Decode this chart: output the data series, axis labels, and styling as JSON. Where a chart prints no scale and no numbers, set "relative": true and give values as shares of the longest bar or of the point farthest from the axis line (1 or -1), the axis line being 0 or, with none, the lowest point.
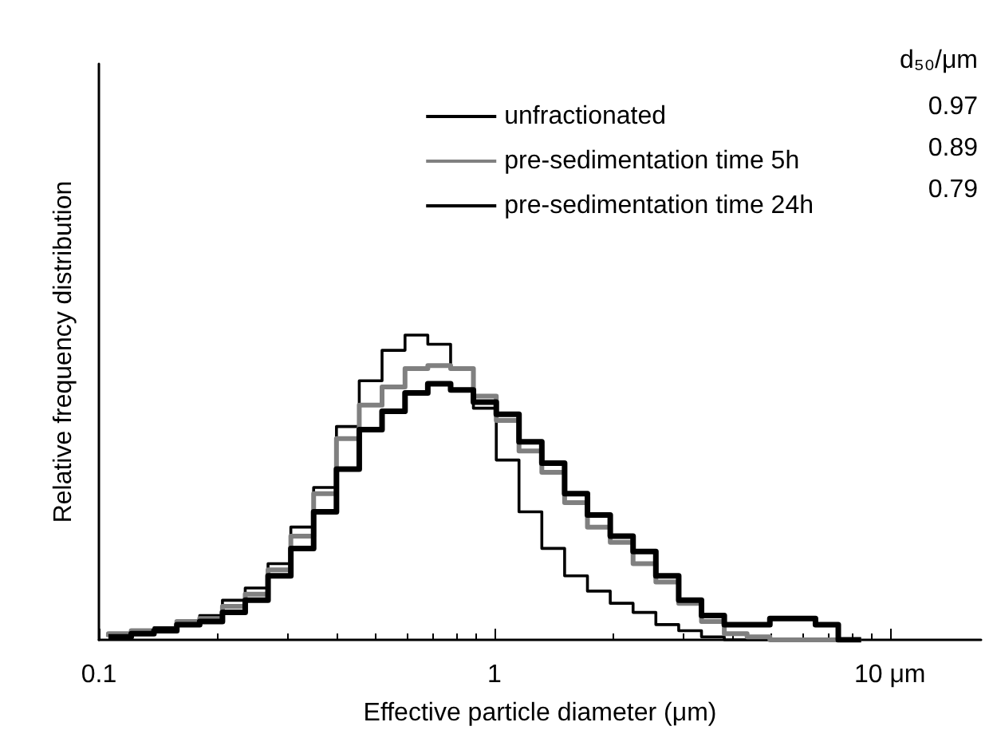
{
  "chart_data": {
    "type": "step",
    "relative": true,
    "log": "x",
    "xlabel": "Effective particle diameter (μm)",
    "ylabel": "Relative frequency distribution",
    "xlim": [
      0.1,
      17
    ],
    "xticks": [
      0.1,
      1,
      {
        "value": 10,
        "label": "10 μm"
      }
    ],
    "x": [
      0.1057,
      0.1207,
      0.1378,
      0.1574,
      0.1798,
      0.2053,
      0.2344,
      0.2677,
      0.3057,
      0.3491,
      0.3987,
      0.4553,
      0.5199,
      0.5943,
      0.6786,
      0.775,
      0.885,
      1.011,
      1.154,
      1.318,
      1.505,
      1.719,
      1.963,
      2.242,
      2.56,
      2.924,
      3.339,
      3.813,
      4.354,
      4.972,
      5.678,
      6.484,
      7.405,
      8.456
    ],
    "series": [
      {
        "name": "unfractionated",
        "color": "#000000",
        "values": [
          0.01,
          0.01,
          0.02,
          0.03,
          0.05,
          0.06,
          0.09,
          0.13,
          0.21,
          0.3,
          0.42,
          0.56,
          0.69,
          0.75,
          0.81,
          0.84,
          0.82,
          0.78,
          0.74,
          0.65,
          0.58,
          0.48,
          0.41,
          0.34,
          0.29,
          0.21,
          0.13,
          0.08,
          0.05,
          0.05,
          0.07,
          0.07,
          0.05,
          0
        ]
      },
      {
        "name": "pre-sedimentation time 5h",
        "color": "#808080",
        "values": [
          0.01,
          0.02,
          0.03,
          0.03,
          0.06,
          0.07,
          0.11,
          0.15,
          0.23,
          0.34,
          0.48,
          0.66,
          0.77,
          0.83,
          0.89,
          0.9,
          0.89,
          0.8,
          0.72,
          0.62,
          0.55,
          0.45,
          0.37,
          0.32,
          0.25,
          0.19,
          0.12,
          0.06,
          0.02,
          0.01,
          0,
          0,
          0,
          0
        ]
      },
      {
        "name": "pre-sedimentation time 24h",
        "color": "#000000",
        "values": [
          0.01,
          0.02,
          0.03,
          0.04,
          0.06,
          0.08,
          0.13,
          0.17,
          0.25,
          0.37,
          0.5,
          0.7,
          0.85,
          0.95,
          1,
          0.97,
          0.89,
          0.76,
          0.59,
          0.42,
          0.3,
          0.21,
          0.16,
          0.12,
          0.09,
          0.05,
          0.03,
          0.01,
          0,
          0,
          0,
          0,
          0,
          0
        ]
      }
    ],
    "legend": "top right",
    "legend_title": "d₅₀/μm",
    "annotations": [
      "0.97",
      "0.89",
      "0.79"
    ],
    "grid": false
  }
}
